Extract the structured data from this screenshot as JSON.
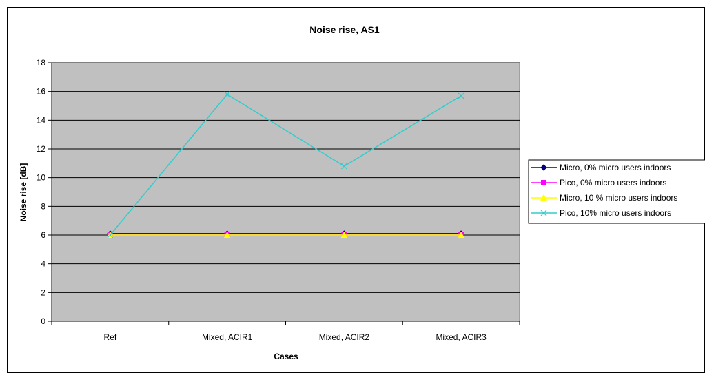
{
  "chart_data": {
    "type": "line",
    "title": "Noise rise, AS1",
    "xlabel": "Cases",
    "ylabel": "Noise rise [dB]",
    "categories": [
      "Ref",
      "Mixed, ACIR1",
      "Mixed, ACIR2",
      "Mixed, ACIR3"
    ],
    "ylim": [
      0,
      18
    ],
    "yticks": [
      0,
      2,
      4,
      6,
      8,
      10,
      12,
      14,
      16,
      18
    ],
    "grid": true,
    "plot_background": "#c0c0c0",
    "legend_position": "right",
    "series": [
      {
        "name": "Micro, 0% micro users indoors",
        "values": [
          6.1,
          6.1,
          6.1,
          6.1
        ],
        "color": "#000080",
        "marker": "diamond"
      },
      {
        "name": "Pico, 0% micro users indoors",
        "values": [
          6.0,
          6.0,
          6.0,
          6.0
        ],
        "color": "#ff00ff",
        "marker": "square"
      },
      {
        "name": "Micro, 10 % micro users indoors",
        "values": [
          6.0,
          6.0,
          6.0,
          6.0
        ],
        "color": "#ffff00",
        "marker": "triangle"
      },
      {
        "name": "Pico, 10% micro users indoors",
        "values": [
          6.0,
          15.8,
          10.8,
          15.7
        ],
        "color": "#33cccc",
        "marker": "x"
      }
    ]
  }
}
